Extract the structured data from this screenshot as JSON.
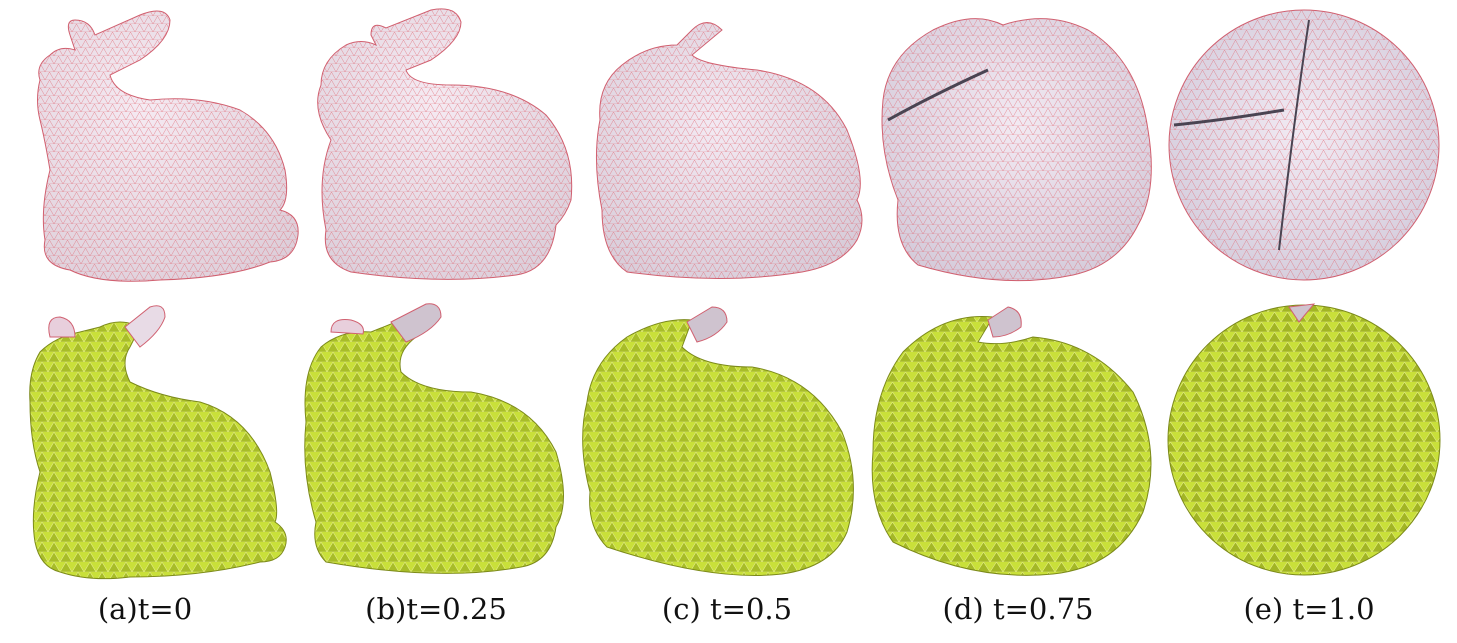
{
  "figure": {
    "panels": [
      {
        "id": "a",
        "caption": "(a)t=0"
      },
      {
        "id": "b",
        "caption": "(b)t=0.25"
      },
      {
        "id": "c",
        "caption": "(c) t=0.5"
      },
      {
        "id": "d",
        "caption": "(d) t=0.75"
      },
      {
        "id": "e",
        "caption": "(e) t=1.0"
      }
    ],
    "colors": {
      "surface": "#eee2ec",
      "wire": "#e0606a",
      "cut": "#c9e03a",
      "cut_wire": "#d8e06a",
      "shadow": "#8a8678"
    }
  }
}
